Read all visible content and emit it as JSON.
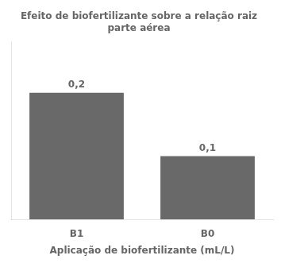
{
  "chart_data": {
    "type": "bar",
    "title": "Efeito de biofertilizante sobre a relação raiz\nparte aérea",
    "xlabel": "Aplicação de biofertilizante (mL/L)",
    "categories": [
      "B1",
      "B0"
    ],
    "values": [
      0.2,
      0.1
    ],
    "value_labels": [
      "0,2",
      "0,1"
    ],
    "color": "#696969",
    "ylim": [
      0,
      0.28
    ],
    "data_labels": true,
    "tick_labels": "x",
    "grid": false
  }
}
